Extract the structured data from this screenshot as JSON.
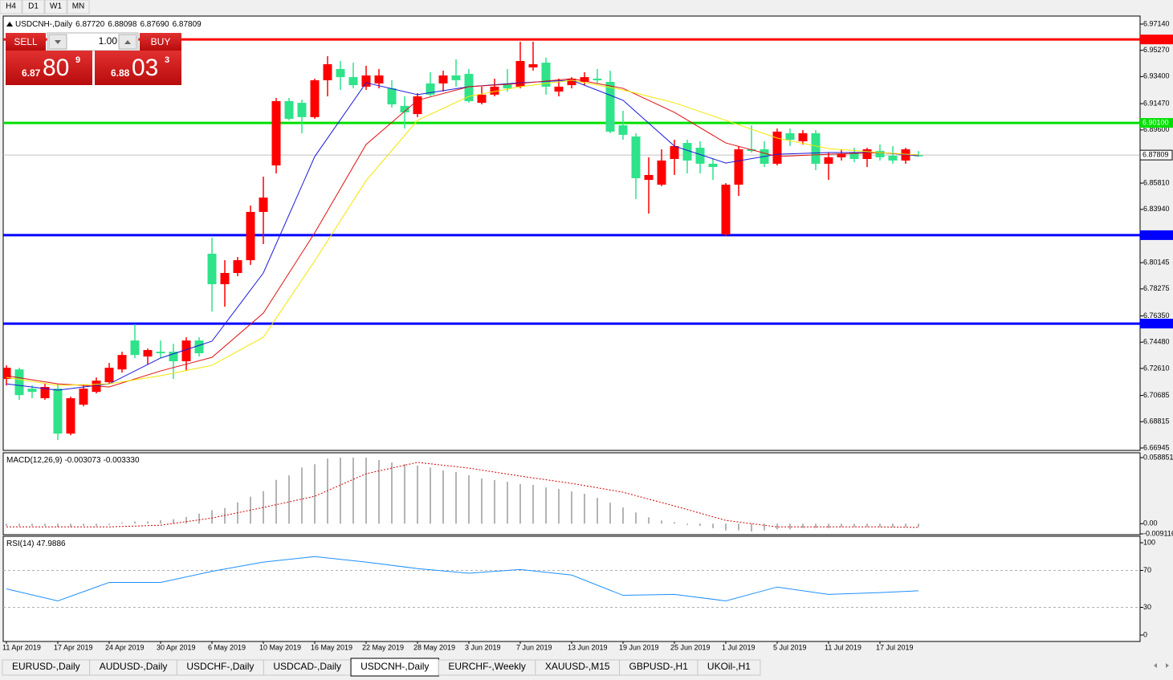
{
  "toolbar": {
    "periods": [
      "H4",
      "D1",
      "W1",
      "MN"
    ]
  },
  "trade_panel": {
    "sell": "SELL",
    "buy": "BUY",
    "lots": "1.00",
    "sell_price": [
      "6.87",
      "80",
      "9"
    ],
    "buy_price": [
      "6.88",
      "03",
      "3"
    ]
  },
  "chart_data": [
    {
      "type": "candlestick",
      "title": "USDCNH-,Daily",
      "header_values": [
        {
          "value": 6.8772,
          "label": "6.87720"
        },
        6.88098,
        {
          "value": 6.8769,
          "label": "6.87690"
        },
        6.87809
      ],
      "categories": [
        "11 Apr 2019",
        null,
        null,
        null,
        "17 Apr 2019",
        null,
        null,
        null,
        "24 Apr 2019",
        null,
        null,
        null,
        "30 Apr 2019",
        null,
        null,
        null,
        "6 May 2019",
        null,
        null,
        null,
        "10 May 2019",
        null,
        null,
        null,
        "16 May 2019",
        null,
        null,
        null,
        "22 May 2019",
        null,
        null,
        null,
        "28 May 2019",
        null,
        null,
        null,
        "3 Jun 2019",
        null,
        null,
        null,
        "7 Jun 2019",
        null,
        null,
        null,
        "13 Jun 2019",
        null,
        null,
        null,
        "19 Jun 2019",
        null,
        null,
        null,
        "25 Jun 2019",
        null,
        null,
        null,
        "1 Jul 2019",
        null,
        null,
        null,
        "5 Jul 2019",
        null,
        null,
        null,
        "11 Jul 2019",
        null,
        null,
        null,
        "17 Jul 2019",
        null,
        null,
        null
      ],
      "candles": [
        [
          6.7266,
          6.7283,
          6.714,
          6.7186
        ],
        [
          6.7071,
          6.7266,
          6.7037,
          6.7254
        ],
        [
          6.7094,
          6.714,
          6.7049,
          6.7117
        ],
        [
          6.7129,
          6.7151,
          6.7037,
          6.7049
        ],
        [
          6.6797,
          6.7151,
          6.6751,
          6.7117
        ],
        [
          6.7049,
          6.706,
          6.6785,
          6.6797
        ],
        [
          6.7117,
          6.714,
          6.6991,
          6.7003
        ],
        [
          6.7174,
          6.7197,
          6.7083,
          6.7094
        ],
        [
          6.7266,
          6.73,
          6.7151,
          6.7163
        ],
        [
          6.7357,
          6.738,
          6.7232,
          6.7254
        ],
        [
          6.7357,
          6.7575,
          6.7335,
          6.746
        ],
        [
          6.7392,
          6.7403,
          6.7289,
          6.7346
        ],
        [
          6.7369,
          6.746,
          6.7335,
          6.738
        ],
        [
          6.7312,
          6.7437,
          6.7186,
          6.738
        ],
        [
          6.746,
          6.7483,
          6.7243,
          6.7312
        ],
        [
          6.7369,
          6.7483,
          6.7346,
          6.746
        ],
        [
          6.7861,
          6.8192,
          6.7666,
          6.8078
        ],
        [
          6.7941,
          6.8032,
          6.7701,
          6.7861
        ],
        [
          6.8032,
          6.8055,
          6.7918,
          6.7941
        ],
        [
          6.8376,
          6.8421,
          6.7998,
          6.8032
        ],
        [
          6.8478,
          6.8627,
          6.8147,
          6.8376
        ],
        [
          6.9165,
          6.9188,
          6.865,
          6.8707
        ],
        [
          6.9039,
          6.9188,
          6.9028,
          6.9165
        ],
        [
          6.9051,
          6.9176,
          6.8936,
          6.9153
        ],
        [
          6.9314,
          6.9325,
          6.9039,
          6.9051
        ],
        [
          6.9428,
          6.9485,
          6.9199,
          6.9314
        ],
        [
          6.9336,
          6.9451,
          6.9245,
          6.9394
        ],
        [
          6.9279,
          6.9439,
          6.9256,
          6.9336
        ],
        [
          6.9348,
          6.9417,
          6.9245,
          6.9268
        ],
        [
          6.9348,
          6.9394,
          6.9256,
          6.9291
        ],
        [
          6.9142,
          6.9314,
          6.9119,
          6.9256
        ],
        [
          6.9085,
          6.9199,
          6.897,
          6.9131
        ],
        [
          6.9199,
          6.9222,
          6.9051,
          6.9073
        ],
        [
          6.9211,
          6.9371,
          6.9199,
          6.9291
        ],
        [
          6.9348,
          6.9382,
          6.9233,
          6.9291
        ],
        [
          6.9314,
          6.9462,
          6.9268,
          6.9348
        ],
        [
          6.9165,
          6.9394,
          6.9153,
          6.9359
        ],
        [
          6.9211,
          6.9268,
          6.9142,
          6.9153
        ],
        [
          6.9268,
          6.9325,
          6.9199,
          6.9211
        ],
        [
          6.9256,
          6.9394,
          6.9233,
          6.9291
        ],
        [
          6.9451,
          6.9588,
          6.9256,
          6.9268
        ],
        [
          6.9428,
          6.9588,
          6.9382,
          6.9405
        ],
        [
          6.9268,
          6.9474,
          6.9211,
          6.9439
        ],
        [
          6.9268,
          6.9325,
          6.9199,
          6.9233
        ],
        [
          6.9325,
          6.9336,
          6.9256,
          6.9279
        ],
        [
          6.9336,
          6.9371,
          6.9279,
          6.9302
        ],
        [
          6.9314,
          6.9394,
          6.9291,
          6.9325
        ],
        [
          6.8948,
          6.9382,
          6.8936,
          6.9302
        ],
        [
          6.8925,
          6.9096,
          6.889,
          6.8993
        ],
        [
          6.8616,
          6.8936,
          6.8467,
          6.8913
        ],
        [
          6.8639,
          6.8765,
          6.8364,
          6.8604
        ],
        [
          6.8742,
          6.8822,
          6.8559,
          6.857
        ],
        [
          6.8845,
          6.889,
          6.8639,
          6.8753
        ],
        [
          6.8742,
          6.889,
          6.865,
          6.8867
        ],
        [
          6.8719,
          6.8879,
          6.865,
          6.8833
        ],
        [
          6.8696,
          6.8753,
          6.8604,
          6.8719
        ],
        [
          6.857,
          6.8581,
          6.8204,
          6.8215
        ],
        [
          6.8822,
          6.8845,
          6.849,
          6.857
        ],
        [
          6.881,
          6.8993,
          6.8799,
          6.8822
        ],
        [
          6.8719,
          6.8879,
          6.8696,
          6.8822
        ],
        [
          6.8948,
          6.897,
          6.8707,
          6.8719
        ],
        [
          6.889,
          6.897,
          6.8845,
          6.8936
        ],
        [
          6.8936,
          6.8959,
          6.8856,
          6.8879
        ],
        [
          6.8719,
          6.8959,
          6.8673,
          6.8936
        ],
        [
          6.8765,
          6.8799,
          6.8604,
          6.8719
        ],
        [
          6.8787,
          6.8822,
          6.8742,
          6.8765
        ],
        [
          6.8753,
          6.8833,
          6.873,
          6.8799
        ],
        [
          6.8822,
          6.8833,
          6.8696,
          6.8753
        ],
        [
          6.8765,
          6.8856,
          6.8742,
          6.881
        ],
        [
          6.8742,
          6.8845,
          6.8719,
          6.8776
        ],
        [
          6.8822,
          6.8833,
          6.8719,
          6.8742
        ],
        [
          6.8772,
          6.88098,
          6.8769,
          6.87809
        ]
      ],
      "up_color": "#2ee38a",
      "down_color": "#ff0000",
      "lines": [
        {
          "color": "#1a1adc",
          "x": [
            0,
            4,
            8,
            12,
            16,
            20,
            24,
            28,
            32,
            36,
            40,
            44,
            48,
            52,
            56,
            60,
            64,
            68,
            71
          ],
          "values": [
            6.7151,
            6.7106,
            6.7151,
            6.7335,
            6.7455,
            6.7941,
            6.877,
            6.9296,
            6.9211,
            6.9268,
            6.9296,
            6.9314,
            6.9171,
            6.8845,
            6.8724,
            6.8787,
            6.8799,
            6.8799,
            6.8776
          ]
        },
        {
          "color": "#e01010",
          "x": [
            0,
            4,
            8,
            12,
            16,
            20,
            24,
            28,
            32,
            36,
            40,
            44,
            48,
            52,
            56,
            60,
            64,
            68,
            71
          ],
          "values": [
            6.7209,
            6.7151,
            6.7129,
            6.7243,
            6.734,
            6.7655,
            6.8227,
            6.8856,
            6.9171,
            6.9268,
            6.9291,
            6.9325,
            6.9256,
            6.9085,
            6.8867,
            6.877,
            6.8787,
            6.8799,
            6.8782
          ]
        },
        {
          "color": "#f2e600",
          "x": [
            0,
            4,
            8,
            12,
            16,
            20,
            24,
            28,
            32,
            36,
            40,
            44,
            48,
            52,
            56,
            60,
            64,
            68,
            71
          ],
          "values": [
            6.7197,
            6.714,
            6.7151,
            6.7209,
            6.7283,
            6.7483,
            6.8027,
            6.8599,
            6.9028,
            6.9199,
            6.9268,
            6.9314,
            6.9245,
            6.9153,
            6.9028,
            6.8902,
            6.8827,
            6.8799,
            6.8782
          ]
        }
      ],
      "levels": [
        {
          "value": 6.96044,
          "color": "#ff0000"
        },
        {
          "value": 6.901,
          "label": "6.90100",
          "color": "#00e000"
        },
        {
          "value": 6.82103,
          "color": "#0000ff"
        },
        {
          "value": 6.75804,
          "color": "#0000ff"
        }
      ],
      "current": 6.87809,
      "ylim": [
        6.6683,
        6.9771
      ],
      "yticks": [
        {
          "value": 6.9714,
          "label": "6.97140"
        },
        {
          "value": 6.9527,
          "label": "6.95270"
        },
        {
          "value": 6.934,
          "label": "6.93400"
        },
        {
          "value": 6.9147,
          "label": "6.91470"
        },
        {
          "value": 6.896,
          "label": "6.89600"
        },
        {
          "value": 6.8581,
          "label": "6.85810"
        },
        {
          "value": 6.8394,
          "label": "6.83940"
        },
        6.80145,
        6.78275,
        {
          "value": 6.7635,
          "label": "6.76350"
        },
        {
          "value": 6.7448,
          "label": "6.74480"
        },
        {
          "value": 6.7261,
          "label": "6.72610"
        },
        6.70685,
        6.68815,
        6.66945
      ]
    },
    {
      "type": "macd",
      "title": "MACD(12,26,9)",
      "readout": [
        -0.003073,
        {
          "value": -0.00333,
          "label": "-0.003330"
        }
      ],
      "values": [
        -0.002,
        -0.002,
        -0.002,
        -0.002,
        -0.003,
        -0.003,
        -0.002,
        -0.002,
        -0.001,
        0.001,
        0.002,
        0.002,
        0.003,
        0.004,
        0.006,
        0.009,
        0.012,
        0.014,
        0.019,
        0.024,
        0.029,
        0.039,
        0.043,
        0.05,
        0.053,
        0.058,
        0.0588,
        0.0588,
        0.0588,
        0.0567,
        0.0545,
        0.053,
        0.0517,
        0.05,
        0.0474,
        0.046,
        0.0431,
        0.0402,
        0.0388,
        0.0373,
        0.0352,
        0.0345,
        0.0323,
        0.0309,
        0.0287,
        0.0266,
        0.023,
        0.0187,
        0.0144,
        0.01,
        0.0057,
        0.0029,
        0.0014,
        -0.001,
        -0.002,
        -0.004,
        -0.006,
        -0.006,
        -0.007,
        -0.006,
        -0.005,
        -0.005,
        -0.004,
        -0.004,
        -0.004,
        -0.003,
        -0.003,
        -0.003,
        -0.003,
        -0.003,
        -0.003,
        -0.003073
      ],
      "color": "#b4b4b4",
      "signal": {
        "color": "#d00000",
        "x": [
          0,
          4,
          8,
          12,
          16,
          20,
          24,
          28,
          32,
          36,
          40,
          44,
          48,
          52,
          56,
          60,
          64,
          68,
          71
        ],
        "values": [
          -0.0029,
          -0.0029,
          -0.0029,
          -0.0014,
          0.005,
          0.0144,
          0.0244,
          0.0445,
          0.0546,
          0.0495,
          0.0424,
          0.0359,
          0.028,
          0.0158,
          0.0029,
          -0.0029,
          -0.0029,
          -0.0029,
          -0.00333
        ]
      },
      "ylim": [
        -0.009116,
        0.058851
      ],
      "yticks": [
        0.058851,
        {
          "value": 0,
          "label": "0.00"
        },
        -0.009116
      ]
    },
    {
      "type": "rsi",
      "title": "RSI(14)",
      "readout": 47.9886,
      "color": "#1e90ff",
      "x": [
        0,
        4,
        8,
        12,
        16,
        20,
        24,
        28,
        32,
        36,
        40,
        44,
        48,
        52,
        56,
        60,
        64,
        68,
        71
      ],
      "values": [
        50,
        37,
        57,
        57,
        69,
        79,
        85,
        79,
        72,
        67,
        71,
        65,
        43,
        44,
        37,
        52,
        44,
        46,
        47.9886
      ],
      "levels": [
        70,
        30
      ],
      "ylim": [
        0,
        100
      ],
      "yticks": [
        100,
        70,
        30,
        0
      ]
    }
  ],
  "tabs": {
    "items": [
      "EURUSD-,Daily",
      "AUDUSD-,Daily",
      "USDCHF-,Daily",
      "USDCAD-,Daily",
      "USDCNH-,Daily",
      "EURCHF-,Weekly",
      "XAUUSD-,M15",
      "GBPUSD-,H1",
      "UKOil-,H1"
    ],
    "active": 4
  }
}
